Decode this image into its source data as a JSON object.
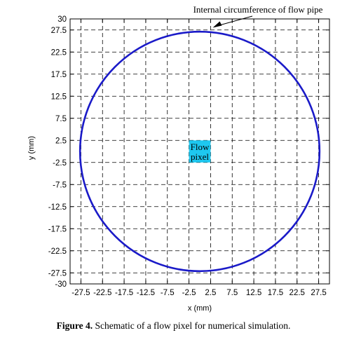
{
  "chart_data": {
    "type": "diagram",
    "xlabel": "x (mm)",
    "ylabel": "y (mm)",
    "xlim": [
      -30,
      30
    ],
    "ylim": [
      -30,
      30
    ],
    "x_ticks": [
      -27.5,
      -22.5,
      -17.5,
      -12.5,
      -7.5,
      -2.5,
      2.5,
      7.5,
      12.5,
      17.5,
      22.5,
      27.5
    ],
    "x_tick_labels": [
      "-27.5",
      "-22.5",
      "-17.5",
      "-12.5",
      "-7.5",
      "-2.5",
      "2.5",
      "7.5",
      "12.5",
      "17.5",
      "22.5",
      "27.5"
    ],
    "y_ticks": [
      30,
      27.5,
      22.5,
      17.5,
      12.5,
      7.5,
      2.5,
      -2.5,
      -7.5,
      -12.5,
      -17.5,
      -22.5,
      -27.5,
      -30
    ],
    "y_tick_labels": [
      "30",
      "27.5",
      "22.5",
      "17.5",
      "12.5",
      "7.5",
      "2.5",
      "-2.5",
      "-7.5",
      "-12.5",
      "-17.5",
      "-22.5",
      "-27.5",
      "-30"
    ],
    "grid": true,
    "circle": {
      "cx": 0,
      "cy": 0,
      "r": 27.7,
      "color": "#1a1ac8"
    },
    "pixel": {
      "x0": -2.5,
      "x1": 2.5,
      "y0": -2.5,
      "y1": 2.5,
      "color": "#1ec8f0",
      "label_line1": "Flow",
      "label_line2": "pixel"
    },
    "annotation": {
      "text": "Internal circumference of flow pipe"
    }
  },
  "caption": {
    "label": "Figure 4.",
    "text": " Schematic of a flow pixel for numerical simulation."
  }
}
